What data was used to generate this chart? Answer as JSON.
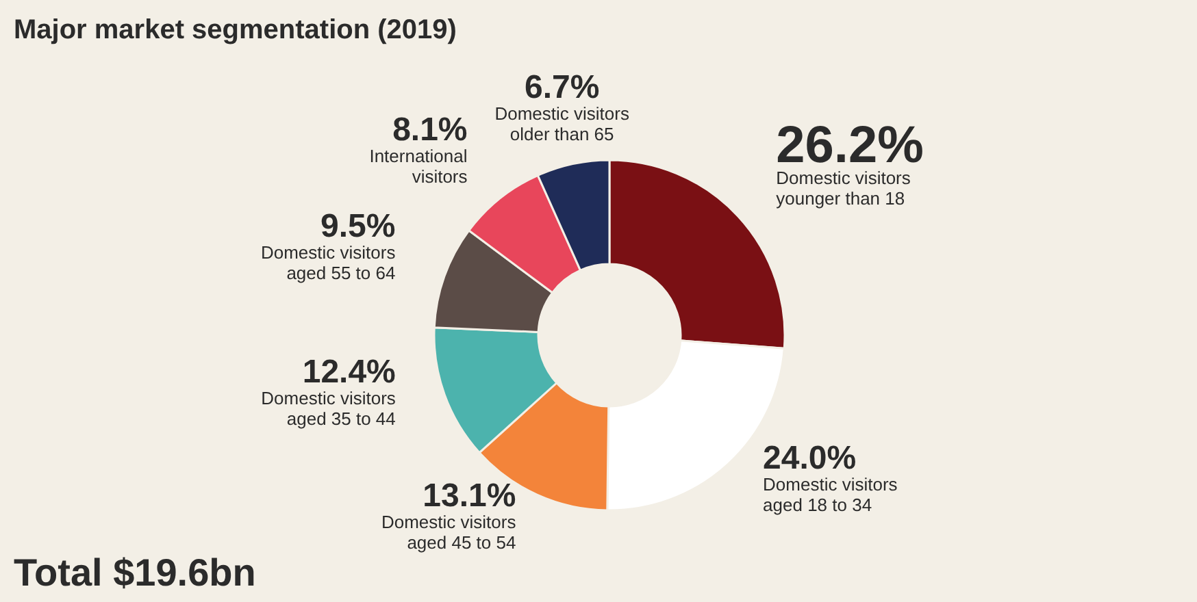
{
  "chart_data": {
    "type": "donut",
    "title": "Major market segmentation (2019)",
    "categories": [
      "Domestic visitors younger than 18",
      "Domestic visitors aged 18 to 34",
      "Domestic visitors aged 45 to 54",
      "Domestic visitors aged 35 to 44",
      "Domestic visitors aged 55 to 64",
      "International visitors",
      "Domestic visitors older than 65"
    ],
    "values": [
      26.2,
      24.0,
      13.1,
      12.4,
      9.5,
      8.1,
      6.7
    ],
    "colors": [
      "#7a1014",
      "#ffffff",
      "#f3843a",
      "#4cb3ad",
      "#5b4c47",
      "#e8465b",
      "#1f2c58"
    ],
    "value_labels": [
      "26.2%",
      "24.0%",
      "13.1%",
      "12.4%",
      "9.5%",
      "8.1%",
      "6.7%"
    ],
    "annotations": [
      "Total $19.6bn"
    ]
  }
}
